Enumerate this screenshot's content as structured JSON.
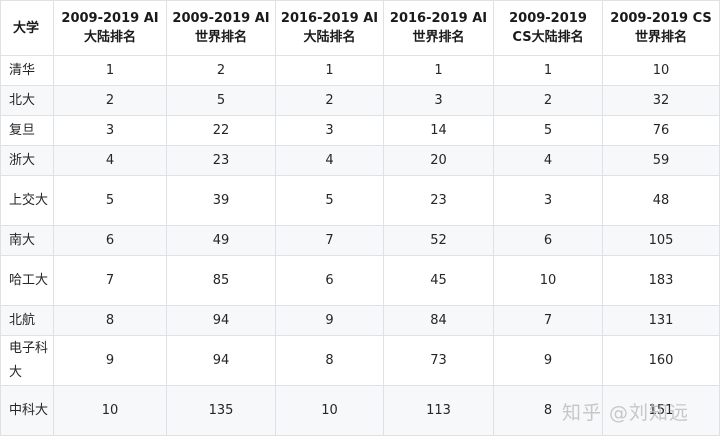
{
  "table": {
    "headers": [
      "大学",
      "2009-2019 AI 大陆排名",
      "2009-2019 AI 世界排名",
      "2016-2019 AI 大陆排名",
      "2016-2019 AI 世界排名",
      "2009-2019 CS大陆排名",
      "2009-2019 CS世界排名"
    ],
    "rows": [
      [
        "清华",
        "1",
        "2",
        "1",
        "1",
        "1",
        "10"
      ],
      [
        "北大",
        "2",
        "5",
        "2",
        "3",
        "2",
        "32"
      ],
      [
        "复旦",
        "3",
        "22",
        "3",
        "14",
        "5",
        "76"
      ],
      [
        "浙大",
        "4",
        "23",
        "4",
        "20",
        "4",
        "59"
      ],
      [
        "上交大",
        "5",
        "39",
        "5",
        "23",
        "3",
        "48"
      ],
      [
        "南大",
        "6",
        "49",
        "7",
        "52",
        "6",
        "105"
      ],
      [
        "哈工大",
        "7",
        "85",
        "6",
        "45",
        "10",
        "183"
      ],
      [
        "北航",
        "8",
        "94",
        "9",
        "84",
        "7",
        "131"
      ],
      [
        "电子科大",
        "9",
        "94",
        "8",
        "73",
        "9",
        "160"
      ],
      [
        "中科大",
        "10",
        "135",
        "10",
        "113",
        "8",
        "151"
      ]
    ]
  },
  "watermark": "知乎 @刘知远"
}
